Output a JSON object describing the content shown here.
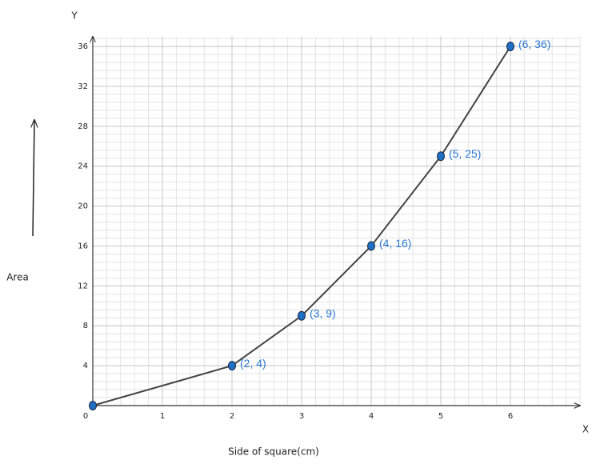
{
  "chart_data": {
    "type": "line",
    "y_axis_name": "Y",
    "x_axis_name": "X",
    "y_label": "Area",
    "x_label": "Side of square(cm)",
    "x": [
      0,
      2,
      3,
      4,
      5,
      6
    ],
    "values": [
      0,
      4,
      9,
      16,
      25,
      36
    ],
    "value_labels": [
      null,
      "(2, 4)",
      "(3, 9)",
      "(4, 16)",
      "(5, 25)",
      "(6, 36)"
    ],
    "color": "#444444",
    "marker_color": "#1f6fc5",
    "xlim": [
      0,
      7
    ],
    "ylim": [
      0,
      37
    ],
    "xticks": [
      0,
      1,
      2,
      3,
      4,
      5,
      6
    ],
    "yticks": [
      0,
      4,
      8,
      12,
      16,
      20,
      24,
      28,
      32,
      36
    ],
    "grid": true,
    "minor_divisions": 5
  }
}
